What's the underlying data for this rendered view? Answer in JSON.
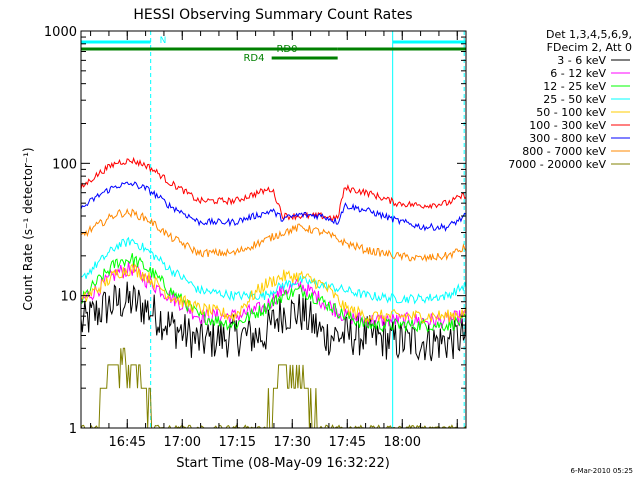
{
  "chart_data": {
    "type": "line",
    "title": "HESSI Observing Summary Count Rates",
    "xlabel": "Start Time (08-May-09 16:32:22)",
    "ylabel": "Count Rate (s⁻¹ detector⁻¹)",
    "yscale": "log",
    "ylim": [
      1,
      1000
    ],
    "xlim_minutes": [
      0,
      105
    ],
    "x_ticks": [
      "16:45",
      "17:00",
      "17:15",
      "17:30",
      "17:45",
      "18:00"
    ],
    "y_ticks": [
      "1",
      "10",
      "100",
      "1000"
    ],
    "timestamp": "6-Mar-2010 05:25",
    "legend_position": "right",
    "legend_header": [
      "Det 1,3,4,5,6,9,",
      "FDecim 2, Att 0"
    ],
    "series": [
      {
        "name": "3 - 6 keV",
        "color": "#000000",
        "x": [
          0,
          6,
          10,
          14,
          18,
          24,
          32,
          42,
          50,
          55,
          60,
          66,
          72,
          78,
          86,
          93,
          100,
          105
        ],
        "values": [
          6,
          8,
          9,
          9,
          8,
          6,
          4.5,
          5,
          5,
          7.5,
          7.5,
          5,
          5,
          5,
          4.5,
          4.5,
          4.5,
          5
        ]
      },
      {
        "name": "6 - 12 keV",
        "color": "#ff00ff",
        "x": [
          0,
          6,
          10,
          14,
          18,
          24,
          32,
          42,
          50,
          55,
          60,
          66,
          72,
          78,
          86,
          93,
          100,
          105
        ],
        "values": [
          9,
          12,
          15,
          16,
          13,
          10,
          7,
          7,
          8,
          11,
          12,
          9,
          7,
          6.5,
          6.5,
          6.5,
          6.5,
          7
        ]
      },
      {
        "name": "12 - 25 keV",
        "color": "#00ff00",
        "x": [
          0,
          6,
          10,
          14,
          18,
          24,
          32,
          42,
          50,
          55,
          60,
          66,
          72,
          78,
          86,
          93,
          100,
          105
        ],
        "values": [
          9,
          14,
          18,
          19,
          16,
          11,
          7,
          6,
          8,
          10,
          11,
          9,
          7,
          6,
          6,
          6,
          6,
          6.5
        ]
      },
      {
        "name": "25 - 50 keV",
        "color": "#00ffff",
        "x": [
          0,
          6,
          10,
          14,
          18,
          24,
          32,
          42,
          50,
          55,
          60,
          66,
          72,
          78,
          86,
          93,
          100,
          105
        ],
        "values": [
          13,
          19,
          24,
          26,
          22,
          16,
          11,
          10,
          10,
          12,
          13,
          12,
          11,
          10,
          9.5,
          9.5,
          10,
          12
        ]
      },
      {
        "name": "50 - 100 keV",
        "color": "#ffcc00",
        "x": [
          0,
          6,
          10,
          14,
          18,
          24,
          32,
          42,
          50,
          55,
          60,
          66,
          72,
          78,
          86,
          93,
          100,
          105
        ],
        "values": [
          9,
          12,
          15,
          16,
          14,
          10,
          8,
          7,
          12,
          14,
          14,
          12,
          8,
          7,
          7,
          7,
          7,
          7.5
        ]
      },
      {
        "name": "100 - 300 keV",
        "color": "#ff0000",
        "x": [
          0,
          6,
          10,
          14,
          18,
          24,
          32,
          42,
          50,
          52,
          55,
          60,
          66,
          70,
          72,
          78,
          86,
          93,
          100,
          105
        ],
        "values": [
          65,
          88,
          102,
          105,
          96,
          72,
          52,
          52,
          62,
          64,
          40,
          40,
          40,
          38,
          65,
          60,
          50,
          48,
          50,
          58
        ]
      },
      {
        "name": "300 - 800 keV",
        "color": "#0000ff",
        "x": [
          0,
          6,
          10,
          14,
          18,
          24,
          32,
          42,
          50,
          52,
          55,
          60,
          66,
          70,
          72,
          78,
          86,
          93,
          100,
          105
        ],
        "values": [
          45,
          60,
          68,
          70,
          64,
          48,
          36,
          36,
          42,
          44,
          38,
          41,
          40,
          36,
          48,
          44,
          37,
          33,
          33,
          40
        ]
      },
      {
        "name": "800 - 7000 keV",
        "color": "#ff8800",
        "x": [
          0,
          6,
          10,
          14,
          18,
          24,
          32,
          42,
          50,
          55,
          60,
          66,
          72,
          78,
          86,
          93,
          100,
          105
        ],
        "values": [
          28,
          36,
          42,
          42,
          38,
          28,
          21,
          21,
          26,
          30,
          33,
          30,
          25,
          22,
          20,
          19,
          20,
          23
        ]
      },
      {
        "name": "7000 - 20000 keV",
        "color": "#808000",
        "x": [
          0,
          5,
          6,
          10,
          14,
          18,
          20,
          24,
          50,
          52,
          55,
          60,
          62,
          66,
          105
        ],
        "values": [
          1,
          1,
          1.8,
          2.8,
          2.8,
          2,
          1,
          1,
          1,
          1.6,
          2.6,
          2.6,
          1.6,
          1,
          1
        ]
      }
    ],
    "flags": [
      {
        "label": "N",
        "color": "#00ffff",
        "row": 1,
        "start": 0,
        "end": 19
      },
      {
        "label": "N",
        "color": "#00ffff",
        "row": 1,
        "start": 85,
        "end": 105
      },
      {
        "label": "RD0",
        "color": "#008000",
        "row": 2,
        "start": 0,
        "end": 70
      },
      {
        "label": "RD0",
        "color": "#008000",
        "row": 2,
        "start": 70,
        "end": 105
      },
      {
        "label": "RD4",
        "color": "#008000",
        "row": 3,
        "start": 52,
        "end": 70
      }
    ],
    "flag_labels": {
      "N": "N",
      "RD0": "RD0",
      "RD4": "RD4"
    },
    "vlines": [
      {
        "minute": 19,
        "style": "dashed"
      },
      {
        "minute": 85,
        "style": "solid"
      },
      {
        "minute": 104.5,
        "style": "dashed"
      }
    ]
  }
}
